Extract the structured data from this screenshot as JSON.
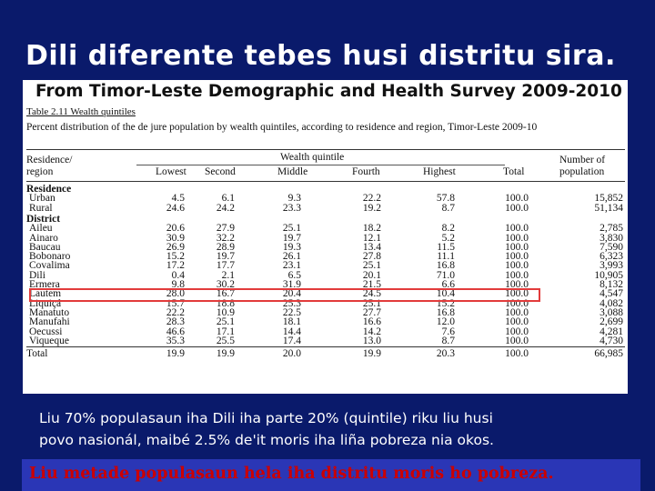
{
  "slide_title": "Dili diferente tebes husi distritu sira.",
  "document": {
    "heading": "From Timor-Leste Demographic and Health Survey 2009-2010",
    "table_caption": "Table 2.11  Wealth quintiles",
    "table_description": "Percent distribution of the de jure population by wealth quintiles, according to residence and region, Timor-Leste 2009-10",
    "header": {
      "residence_region_line1": "Residence/",
      "residence_region_line2": "region",
      "wealth_quintile": "Wealth quintile",
      "lowest": "Lowest",
      "second": "Second",
      "middle": "Middle",
      "fourth": "Fourth",
      "highest": "Highest",
      "total": "Total",
      "number_line1": "Number of",
      "number_line2": "population"
    },
    "sections": [
      {
        "label": "Residence",
        "rows": [
          {
            "name": "Urban",
            "values": [
              "4.5",
              "6.1",
              "9.3",
              "22.2",
              "57.8",
              "100.0",
              "15,852"
            ]
          },
          {
            "name": "Rural",
            "values": [
              "24.6",
              "24.2",
              "23.3",
              "19.2",
              "8.7",
              "100.0",
              "51,134"
            ]
          }
        ]
      },
      {
        "label": "District",
        "rows": [
          {
            "name": "Aileu",
            "values": [
              "20.6",
              "27.9",
              "25.1",
              "18.2",
              "8.2",
              "100.0",
              "2,785"
            ]
          },
          {
            "name": "Ainaro",
            "values": [
              "30.9",
              "32.2",
              "19.7",
              "12.1",
              "5.2",
              "100.0",
              "3,830"
            ]
          },
          {
            "name": "Baucau",
            "values": [
              "26.9",
              "28.9",
              "19.3",
              "13.4",
              "11.5",
              "100.0",
              "7,590"
            ]
          },
          {
            "name": "Bobonaro",
            "values": [
              "15.2",
              "19.7",
              "26.1",
              "27.8",
              "11.1",
              "100.0",
              "6,323"
            ]
          },
          {
            "name": "Covalima",
            "values": [
              "17.2",
              "17.7",
              "23.1",
              "25.1",
              "16.8",
              "100.0",
              "3,993"
            ]
          },
          {
            "name": "Dili",
            "values": [
              "0.4",
              "2.1",
              "6.5",
              "20.1",
              "71.0",
              "100.0",
              "10,905"
            ]
          },
          {
            "name": "Ermera",
            "values": [
              "9.8",
              "30.2",
              "31.9",
              "21.5",
              "6.6",
              "100.0",
              "8,132"
            ]
          },
          {
            "name": "Lautem",
            "values": [
              "28.0",
              "16.7",
              "20.4",
              "24.5",
              "10.4",
              "100.0",
              "4,547"
            ]
          },
          {
            "name": "Liquiçá",
            "values": [
              "15.7",
              "18.8",
              "25.3",
              "25.1",
              "15.2",
              "100.0",
              "4,082"
            ]
          },
          {
            "name": "Manatuto",
            "values": [
              "22.2",
              "10.9",
              "22.5",
              "27.7",
              "16.8",
              "100.0",
              "3,088"
            ]
          },
          {
            "name": "Manufahi",
            "values": [
              "28.3",
              "25.1",
              "18.1",
              "16.6",
              "12.0",
              "100.0",
              "2,699"
            ]
          },
          {
            "name": "Oecussi",
            "values": [
              "46.6",
              "17.1",
              "14.4",
              "14.2",
              "7.6",
              "100.0",
              "4,281"
            ]
          },
          {
            "name": "Viqueque",
            "values": [
              "35.3",
              "25.5",
              "17.4",
              "13.0",
              "8.7",
              "100.0",
              "4,730"
            ]
          }
        ]
      }
    ],
    "total_row": {
      "name": "Total",
      "values": [
        "19.9",
        "19.9",
        "20.0",
        "19.9",
        "20.3",
        "100.0",
        "66,985"
      ]
    }
  },
  "caption_line1": "Liu 70% populasaun iha Dili iha parte 20% (quintile) riku liu husi",
  "caption_line2": "povo nasionál, maibé 2.5% de'it moris iha liña pobreza nia okos.",
  "banner_text": "Liu metade populasaun hela iha distritu moris ho pobreza.",
  "colors": {
    "background": "#0a1a6b",
    "banner": "#2a36b6",
    "banner_text": "#cc0000",
    "highlight_box": "#e23b3b"
  }
}
